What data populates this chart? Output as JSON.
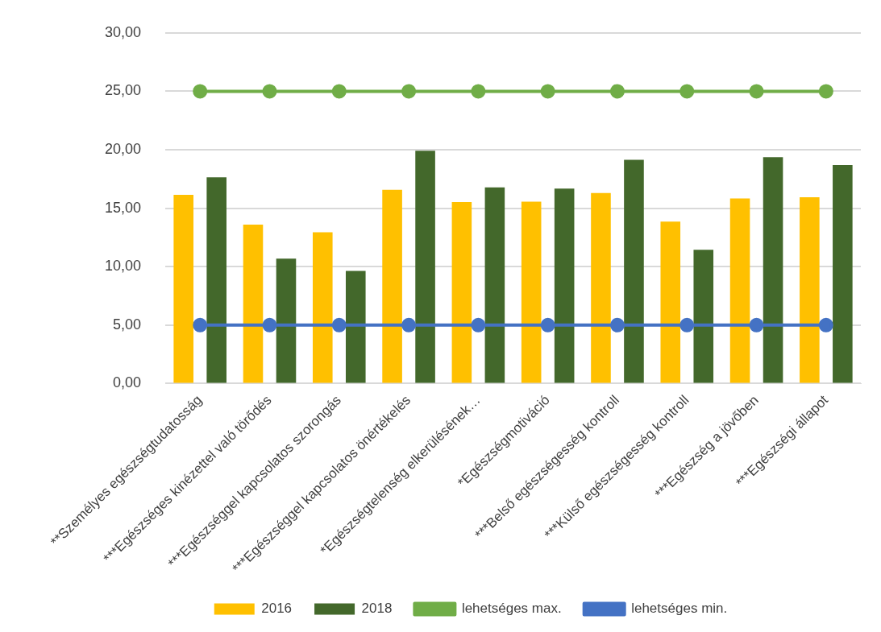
{
  "chart_data": {
    "type": "bar",
    "categories": [
      "**Személyes egészségtudatosság",
      "***Egészséges kinézettel való törődés",
      "***Egészséggel kapcsolatos szorongás",
      "***Egészséggel kapcsolatos önértékelés",
      "*Egészségtelenség elkerülésének…",
      "*Egészségmotiváció",
      "***Belső egészségesség kontroll",
      "***Külső egészségesség kontroll",
      "***Egészség a jövőben",
      "***Egészségi állapot"
    ],
    "series": [
      {
        "name": "2016",
        "color": "#ffc000",
        "values": [
          16.14,
          13.6,
          12.94,
          16.58,
          15.53,
          15.56,
          16.3,
          13.86,
          15.83,
          15.94
        ]
      },
      {
        "name": "2018",
        "color": "#43682b",
        "values": [
          17.64,
          10.69,
          9.64,
          19.92,
          16.78,
          16.67,
          19.14,
          11.44,
          19.36,
          18.69
        ]
      },
      {
        "name": "lehetséges max.",
        "type": "line",
        "color": "#70ad47",
        "values": [
          25,
          25,
          25,
          25,
          25,
          25,
          25,
          25,
          25,
          25
        ]
      },
      {
        "name": "lehetséges min.",
        "type": "line",
        "color": "#4472c4",
        "values": [
          5,
          5,
          5,
          5,
          5,
          5,
          5,
          5,
          5,
          5
        ]
      }
    ],
    "ylim": [
      0,
      30
    ],
    "yticks": [
      {
        "value": 0,
        "label": "0,00"
      },
      {
        "value": 5,
        "label": "5,00"
      },
      {
        "value": 10,
        "label": "10,00"
      },
      {
        "value": 15,
        "label": "15,00"
      },
      {
        "value": 20,
        "label": "20,00"
      },
      {
        "value": 25,
        "label": "25,00"
      },
      {
        "value": 30,
        "label": "30,00"
      }
    ],
    "grid": "y",
    "legend": "bottom",
    "marker": "circle"
  }
}
